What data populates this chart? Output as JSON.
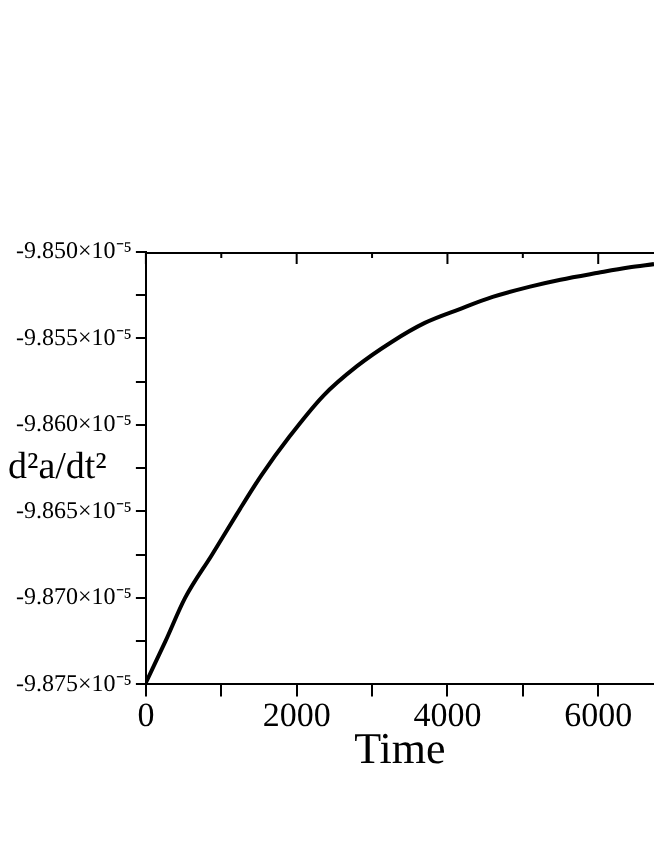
{
  "chart_data": {
    "type": "line",
    "xlabel": "Time",
    "ylabel": "d²a/dt²",
    "x": [
      0,
      260,
      520,
      877,
      1200,
      1534,
      1900,
      2356,
      2800,
      3260,
      3700,
      4164,
      4600,
      5096,
      5500,
      6000,
      6400,
      6740
    ],
    "series": [
      {
        "color": "#000000",
        "values": [
          -9.8749e-05,
          -9.8725e-05,
          -9.87e-05,
          -9.8675e-05,
          -9.8652e-05,
          -9.8629e-05,
          -9.8607e-05,
          -9.8583e-05,
          -9.8566e-05,
          -9.8552e-05,
          -9.8541e-05,
          -9.8533e-05,
          -9.8526e-05,
          -9.852e-05,
          -9.8516e-05,
          -9.8512e-05,
          -9.8509e-05,
          -9.8507e-05
        ]
      }
    ],
    "xlim": [
      0,
      6740
    ],
    "ylim": [
      -9.875e-05,
      -9.85e-05
    ],
    "xticks": [
      0,
      {
        "value": 1000,
        "label": null
      },
      2000,
      {
        "value": 3000,
        "label": null
      },
      4000,
      {
        "value": 5000,
        "label": null
      },
      6000
    ],
    "yticks": [
      {
        "value": -9.875e-05,
        "label": "-9.875×10⁻⁵"
      },
      {
        "value": -9.8725e-05,
        "label": null
      },
      {
        "value": -9.87e-05,
        "label": "-9.870×10⁻⁵"
      },
      {
        "value": -9.8675e-05,
        "label": null
      },
      {
        "value": -9.865e-05,
        "label": "-9.865×10⁻⁵"
      },
      {
        "value": -9.8625e-05,
        "label": null
      },
      {
        "value": -9.86e-05,
        "label": "-9.860×10⁻⁵"
      },
      {
        "value": -9.8575e-05,
        "label": null
      },
      {
        "value": -9.855e-05,
        "label": "-9.855×10⁻⁵"
      },
      {
        "value": -9.8525e-05,
        "label": null
      },
      {
        "value": -9.85e-05,
        "label": "-9.850×10⁻⁵"
      }
    ],
    "grid": false,
    "legend": false,
    "marker": "none",
    "line_style": "solid"
  }
}
